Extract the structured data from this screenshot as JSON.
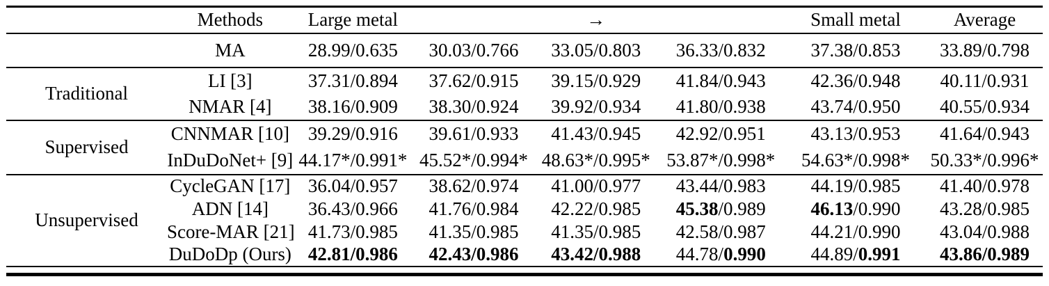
{
  "table": {
    "header": {
      "group": "",
      "methods": "Methods",
      "cols": [
        "Large metal",
        "",
        "→",
        "",
        "Small metal",
        "Average"
      ]
    },
    "groups": [
      {
        "label": "",
        "rows": [
          {
            "method": "MA",
            "values": [
              "28.99/0.635",
              "30.03/0.766",
              "33.05/0.803",
              "36.33/0.832",
              "37.38/0.853",
              "33.89/0.798"
            ]
          }
        ]
      },
      {
        "label": "Traditional",
        "rows": [
          {
            "method": "LI [3]",
            "values": [
              "37.31/0.894",
              "37.62/0.915",
              "39.15/0.929",
              "41.84/0.943",
              "42.36/0.948",
              "40.11/0.931"
            ]
          },
          {
            "method": "NMAR [4]",
            "values": [
              "38.16/0.909",
              "38.30/0.924",
              "39.92/0.934",
              "41.80/0.938",
              "43.74/0.950",
              "40.55/0.934"
            ]
          }
        ]
      },
      {
        "label": "Supervised",
        "rows": [
          {
            "method": "CNNMAR [10]",
            "values": [
              "39.29/0.916",
              "39.61/0.933",
              "41.43/0.945",
              "42.92/0.951",
              "43.13/0.953",
              "41.64/0.943"
            ]
          },
          {
            "method": "InDuDoNet+ [9]",
            "values": [
              "44.17*/0.991*",
              "45.52*/0.994*",
              "48.63*/0.995*",
              "53.87*/0.998*",
              "54.63*/0.998*",
              "50.33*/0.996*"
            ]
          }
        ]
      },
      {
        "label": "Unsupervised",
        "rows": [
          {
            "method": "CycleGAN [17]",
            "values": [
              "36.04/0.957",
              "38.62/0.974",
              "41.00/0.977",
              "43.44/0.983",
              "44.19/0.985",
              "41.40/0.978"
            ]
          },
          {
            "method": "ADN [14]",
            "values": [
              "36.43/0.966",
              "41.76/0.984",
              "42.22/0.985",
              "**45.38**/0.989",
              "**46.13**/0.990",
              "43.28/0.985"
            ]
          },
          {
            "method": "Score-MAR [21]",
            "values": [
              "41.73/0.985",
              "41.35/0.985",
              "41.35/0.985",
              "42.58/0.987",
              "44.21/0.990",
              "43.04/0.988"
            ]
          },
          {
            "method": "DuDoDp (Ours)",
            "values": [
              "**42.81/0.986**",
              "**42.43/0.986**",
              "**43.42/0.988**",
              "44.78/**0.990**",
              "44.89/**0.991**",
              "**43.86/0.989**"
            ]
          }
        ]
      }
    ],
    "colors": {
      "text": "#000000",
      "background": "#ffffff",
      "rule": "#000000"
    }
  }
}
